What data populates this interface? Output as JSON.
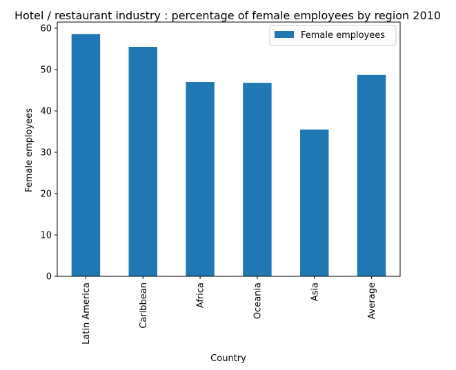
{
  "chart_data": {
    "type": "bar",
    "title": "Hotel / restaurant industry : percentage of female employees by region 2010",
    "xlabel": "Country",
    "ylabel": "Female employees",
    "categories": [
      "Latin America",
      "Caribbean",
      "Africa",
      "Oceania",
      "Asia",
      "Average"
    ],
    "series": [
      {
        "name": "Female employees",
        "values": [
          58.6,
          55.5,
          47.0,
          46.8,
          35.5,
          48.7
        ],
        "color": "#1f77b4"
      }
    ],
    "ylim": [
      0,
      61.5
    ],
    "yticks": [
      0,
      10,
      20,
      30,
      40,
      50,
      60
    ],
    "grid": false,
    "legend_position": "top-right"
  }
}
